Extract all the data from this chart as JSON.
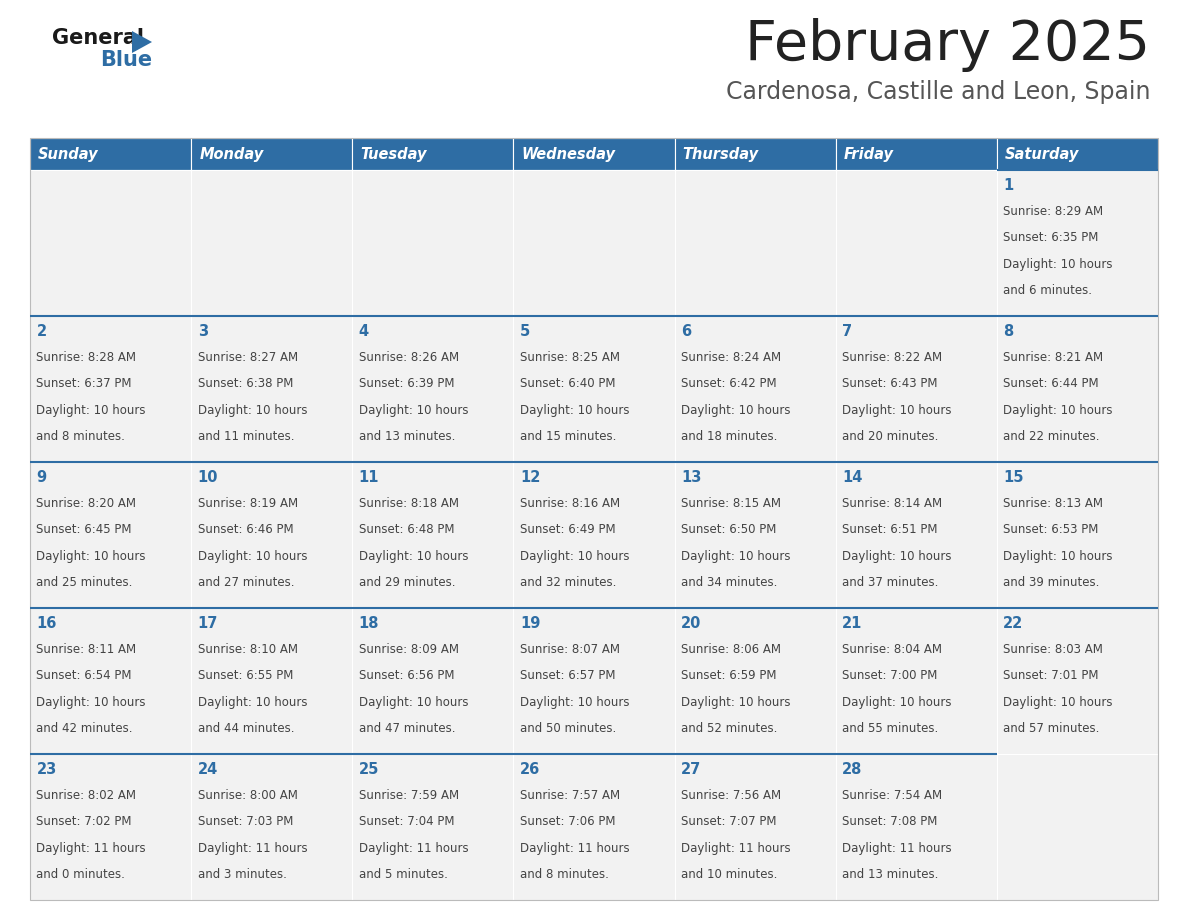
{
  "title": "February 2025",
  "subtitle": "Cardenosa, Castille and Leon, Spain",
  "days_of_week": [
    "Sunday",
    "Monday",
    "Tuesday",
    "Wednesday",
    "Thursday",
    "Friday",
    "Saturday"
  ],
  "header_bg": "#2E6DA4",
  "header_text": "#FFFFFF",
  "cell_bg": "#F2F2F2",
  "day_num_color": "#2E6DA4",
  "text_color": "#444444",
  "line_color": "#2E6DA4",
  "calendar": [
    [
      null,
      null,
      null,
      null,
      null,
      null,
      {
        "day": 1,
        "sunrise": "8:29 AM",
        "sunset": "6:35 PM",
        "daylight": "10 hours",
        "daylight2": "and 6 minutes."
      }
    ],
    [
      {
        "day": 2,
        "sunrise": "8:28 AM",
        "sunset": "6:37 PM",
        "daylight": "10 hours",
        "daylight2": "and 8 minutes."
      },
      {
        "day": 3,
        "sunrise": "8:27 AM",
        "sunset": "6:38 PM",
        "daylight": "10 hours",
        "daylight2": "and 11 minutes."
      },
      {
        "day": 4,
        "sunrise": "8:26 AM",
        "sunset": "6:39 PM",
        "daylight": "10 hours",
        "daylight2": "and 13 minutes."
      },
      {
        "day": 5,
        "sunrise": "8:25 AM",
        "sunset": "6:40 PM",
        "daylight": "10 hours",
        "daylight2": "and 15 minutes."
      },
      {
        "day": 6,
        "sunrise": "8:24 AM",
        "sunset": "6:42 PM",
        "daylight": "10 hours",
        "daylight2": "and 18 minutes."
      },
      {
        "day": 7,
        "sunrise": "8:22 AM",
        "sunset": "6:43 PM",
        "daylight": "10 hours",
        "daylight2": "and 20 minutes."
      },
      {
        "day": 8,
        "sunrise": "8:21 AM",
        "sunset": "6:44 PM",
        "daylight": "10 hours",
        "daylight2": "and 22 minutes."
      }
    ],
    [
      {
        "day": 9,
        "sunrise": "8:20 AM",
        "sunset": "6:45 PM",
        "daylight": "10 hours",
        "daylight2": "and 25 minutes."
      },
      {
        "day": 10,
        "sunrise": "8:19 AM",
        "sunset": "6:46 PM",
        "daylight": "10 hours",
        "daylight2": "and 27 minutes."
      },
      {
        "day": 11,
        "sunrise": "8:18 AM",
        "sunset": "6:48 PM",
        "daylight": "10 hours",
        "daylight2": "and 29 minutes."
      },
      {
        "day": 12,
        "sunrise": "8:16 AM",
        "sunset": "6:49 PM",
        "daylight": "10 hours",
        "daylight2": "and 32 minutes."
      },
      {
        "day": 13,
        "sunrise": "8:15 AM",
        "sunset": "6:50 PM",
        "daylight": "10 hours",
        "daylight2": "and 34 minutes."
      },
      {
        "day": 14,
        "sunrise": "8:14 AM",
        "sunset": "6:51 PM",
        "daylight": "10 hours",
        "daylight2": "and 37 minutes."
      },
      {
        "day": 15,
        "sunrise": "8:13 AM",
        "sunset": "6:53 PM",
        "daylight": "10 hours",
        "daylight2": "and 39 minutes."
      }
    ],
    [
      {
        "day": 16,
        "sunrise": "8:11 AM",
        "sunset": "6:54 PM",
        "daylight": "10 hours",
        "daylight2": "and 42 minutes."
      },
      {
        "day": 17,
        "sunrise": "8:10 AM",
        "sunset": "6:55 PM",
        "daylight": "10 hours",
        "daylight2": "and 44 minutes."
      },
      {
        "day": 18,
        "sunrise": "8:09 AM",
        "sunset": "6:56 PM",
        "daylight": "10 hours",
        "daylight2": "and 47 minutes."
      },
      {
        "day": 19,
        "sunrise": "8:07 AM",
        "sunset": "6:57 PM",
        "daylight": "10 hours",
        "daylight2": "and 50 minutes."
      },
      {
        "day": 20,
        "sunrise": "8:06 AM",
        "sunset": "6:59 PM",
        "daylight": "10 hours",
        "daylight2": "and 52 minutes."
      },
      {
        "day": 21,
        "sunrise": "8:04 AM",
        "sunset": "7:00 PM",
        "daylight": "10 hours",
        "daylight2": "and 55 minutes."
      },
      {
        "day": 22,
        "sunrise": "8:03 AM",
        "sunset": "7:01 PM",
        "daylight": "10 hours",
        "daylight2": "and 57 minutes."
      }
    ],
    [
      {
        "day": 23,
        "sunrise": "8:02 AM",
        "sunset": "7:02 PM",
        "daylight": "11 hours",
        "daylight2": "and 0 minutes."
      },
      {
        "day": 24,
        "sunrise": "8:00 AM",
        "sunset": "7:03 PM",
        "daylight": "11 hours",
        "daylight2": "and 3 minutes."
      },
      {
        "day": 25,
        "sunrise": "7:59 AM",
        "sunset": "7:04 PM",
        "daylight": "11 hours",
        "daylight2": "and 5 minutes."
      },
      {
        "day": 26,
        "sunrise": "7:57 AM",
        "sunset": "7:06 PM",
        "daylight": "11 hours",
        "daylight2": "and 8 minutes."
      },
      {
        "day": 27,
        "sunrise": "7:56 AM",
        "sunset": "7:07 PM",
        "daylight": "11 hours",
        "daylight2": "and 10 minutes."
      },
      {
        "day": 28,
        "sunrise": "7:54 AM",
        "sunset": "7:08 PM",
        "daylight": "11 hours",
        "daylight2": "and 13 minutes."
      },
      null
    ]
  ]
}
